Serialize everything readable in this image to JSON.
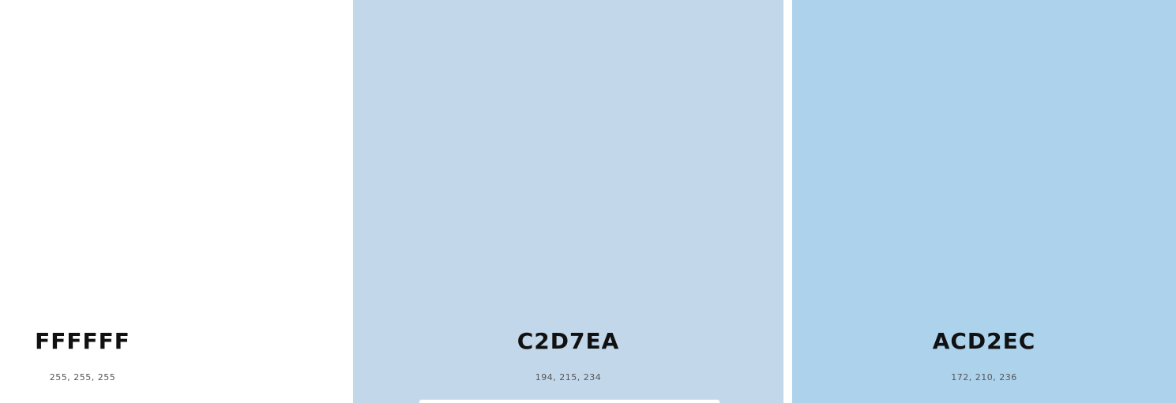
{
  "swatches": [
    {
      "hex": "FFFFFF",
      "rgb": "255, 255, 255",
      "color": "#FFFFFF"
    },
    {
      "hex": "C2D7EA",
      "rgb": "194, 215, 234",
      "color": "#C2D7EA"
    },
    {
      "hex": "ACD2EC",
      "rgb": "172, 210, 236",
      "color": "#ACD2EC"
    }
  ]
}
